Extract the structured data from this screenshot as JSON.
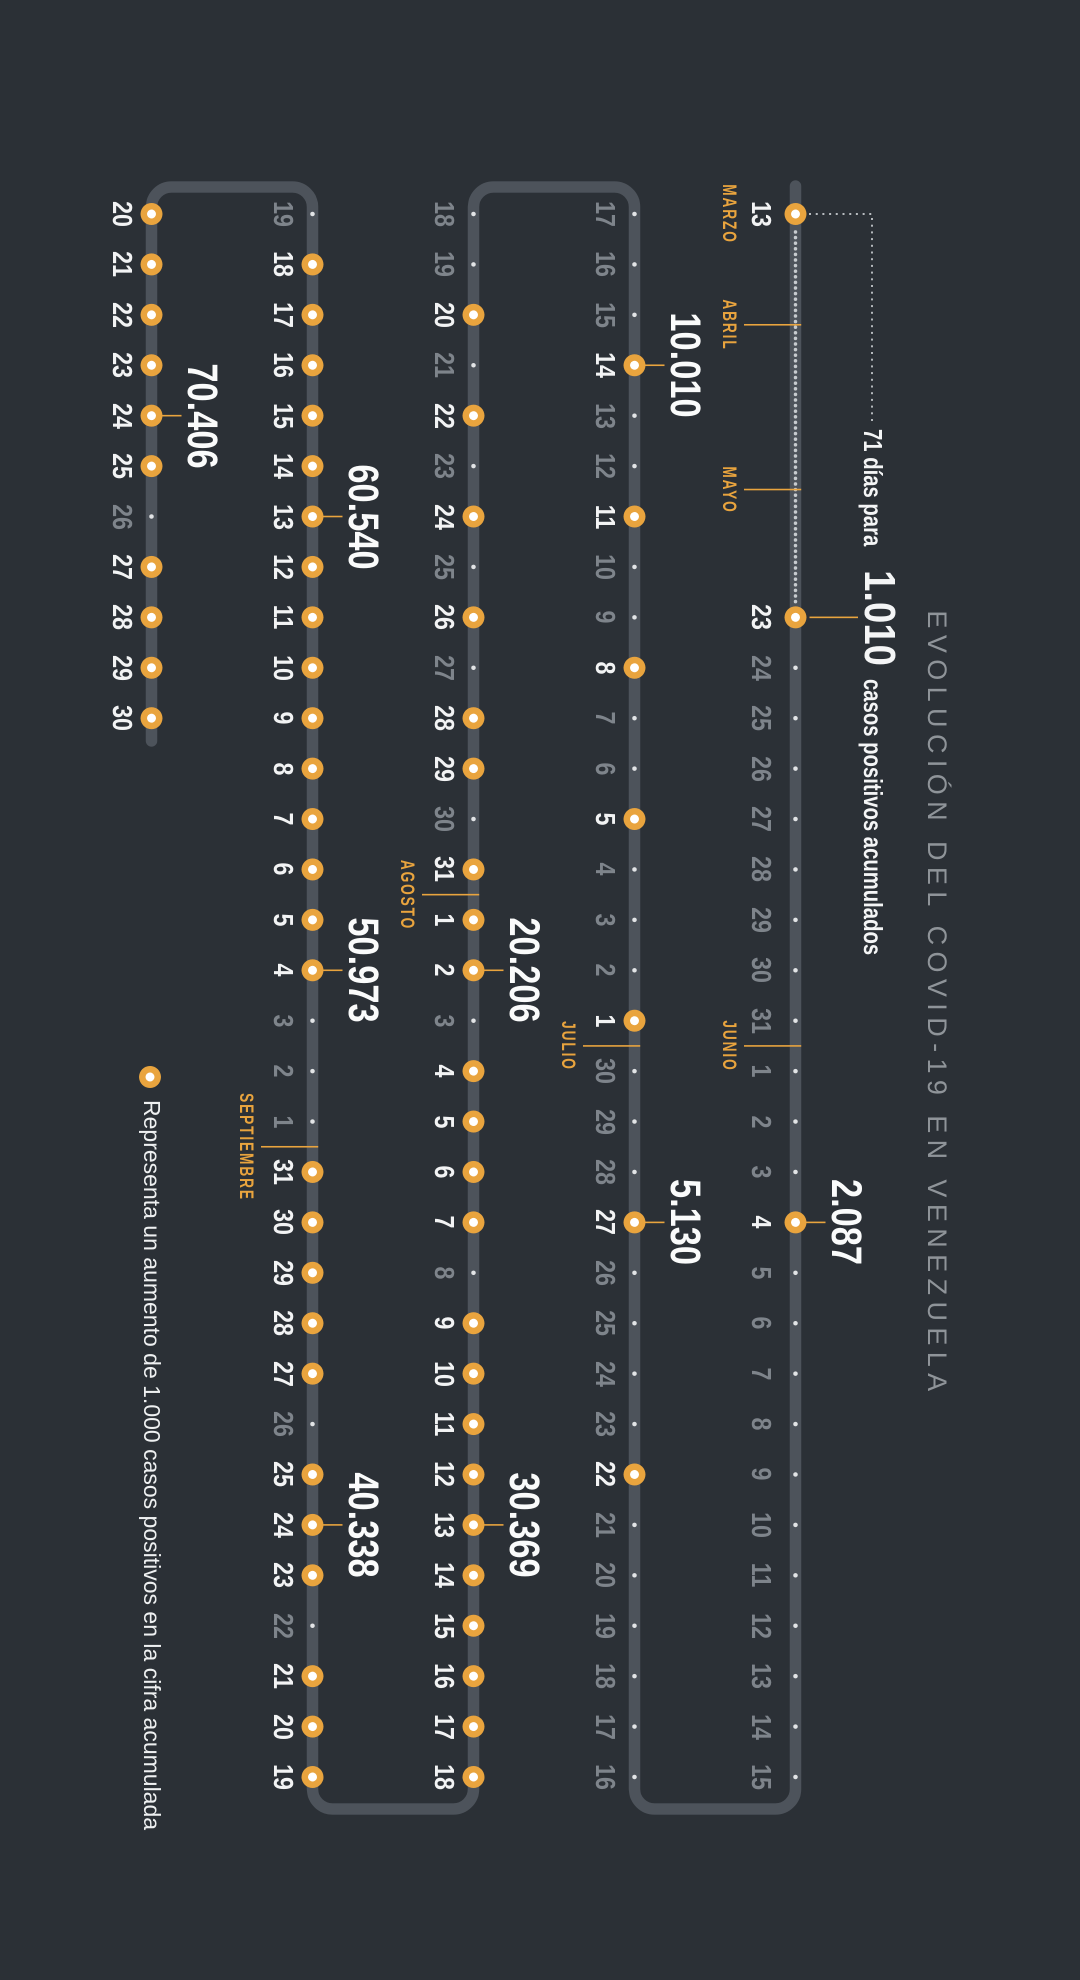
{
  "title": "EVOLUCIÓN DEL COVID-19 EN VENEZUELA",
  "annotation": {
    "prefix": "71 días para",
    "value": "1.010",
    "suffix": "casos positivos acumulados"
  },
  "legend": {
    "marker": "orange-ring-icon",
    "text": "Representa un aumento de 1.000 casos positivos en la cifra acumulada"
  },
  "colors": {
    "background": "#2b3036",
    "track": "#4d535b",
    "accent_orange": "#e9a43e",
    "label_grey": "#7e848b",
    "label_white": "#f2f3f4",
    "title_grey": "#8f9499",
    "trail_dot": "#c7cbcf",
    "day_dot": "#e2e4e6",
    "marker_center": "#ffffff"
  },
  "chart_data": {
    "type": "timeline",
    "title": "EVOLUCIÓN DEL COVID-19 EN VENEZUELA",
    "legend_entries": [
      "Representa un aumento de 1.000 casos positivos en la cifra acumulada"
    ],
    "annotations": [
      "71 días para 1.010 casos positivos acumulados"
    ],
    "milestone_meaning": "each orange ring marks an increase of 1.000 accumulated positive cases",
    "milestones": [
      {
        "value": "1.010",
        "month": "mayo",
        "day": 23
      },
      {
        "value": "2.087",
        "month": "junio",
        "day": 4
      },
      {
        "value": "5.130",
        "month": "junio",
        "day": 27
      },
      {
        "value": "10.010",
        "month": "julio",
        "day": 14
      },
      {
        "value": "20.206",
        "month": "agosto",
        "day": 2
      },
      {
        "value": "30.369",
        "month": "agosto",
        "day": 13
      },
      {
        "value": "40.338",
        "month": "agosto",
        "day": 24
      },
      {
        "value": "50.973",
        "month": "septiembre",
        "day": 4
      },
      {
        "value": "60.540",
        "month": "septiembre",
        "day": 13
      },
      {
        "value": "70.406",
        "month": "septiembre",
        "day": 24
      }
    ],
    "rows": [
      {
        "direction": "ltr",
        "start_label": {
          "month": "MARZO",
          "day": 13,
          "milestone": true
        },
        "dotted_gap": {
          "from": "14 marzo",
          "to": "22 mayo"
        },
        "ticks": [
          {
            "month": "ABRIL",
            "between_day_units": 19.5
          },
          {
            "month": "MAYO",
            "between_day_units": 48.5
          }
        ],
        "days": [
          {
            "m": "mayo",
            "d": 23,
            "ms": true,
            "big": "1.010_annotation"
          },
          {
            "m": "mayo",
            "d": 24
          },
          {
            "m": "mayo",
            "d": 25
          },
          {
            "m": "mayo",
            "d": 26
          },
          {
            "m": "mayo",
            "d": 27
          },
          {
            "m": "mayo",
            "d": 28
          },
          {
            "m": "mayo",
            "d": 29
          },
          {
            "m": "mayo",
            "d": 30
          },
          {
            "m": "mayo",
            "d": 31
          },
          {
            "m": "junio",
            "d": 1,
            "tick_before": "JUNIO"
          },
          {
            "m": "junio",
            "d": 2
          },
          {
            "m": "junio",
            "d": 3
          },
          {
            "m": "junio",
            "d": 4,
            "ms": true,
            "big": "2.087"
          },
          {
            "m": "junio",
            "d": 5
          },
          {
            "m": "junio",
            "d": 6
          },
          {
            "m": "junio",
            "d": 7
          },
          {
            "m": "junio",
            "d": 8
          },
          {
            "m": "junio",
            "d": 9
          },
          {
            "m": "junio",
            "d": 10
          },
          {
            "m": "junio",
            "d": 11
          },
          {
            "m": "junio",
            "d": 12
          },
          {
            "m": "junio",
            "d": 13
          },
          {
            "m": "junio",
            "d": 14
          },
          {
            "m": "junio",
            "d": 15
          }
        ]
      },
      {
        "direction": "rtl",
        "days": [
          {
            "m": "junio",
            "d": 16
          },
          {
            "m": "junio",
            "d": 17
          },
          {
            "m": "junio",
            "d": 18
          },
          {
            "m": "junio",
            "d": 19
          },
          {
            "m": "junio",
            "d": 20
          },
          {
            "m": "junio",
            "d": 21
          },
          {
            "m": "junio",
            "d": 22,
            "ms": true
          },
          {
            "m": "junio",
            "d": 23
          },
          {
            "m": "junio",
            "d": 24
          },
          {
            "m": "junio",
            "d": 25
          },
          {
            "m": "junio",
            "d": 26
          },
          {
            "m": "junio",
            "d": 27,
            "ms": true,
            "big": "5.130"
          },
          {
            "m": "junio",
            "d": 28
          },
          {
            "m": "junio",
            "d": 29
          },
          {
            "m": "junio",
            "d": 30
          },
          {
            "m": "julio",
            "d": 1,
            "ms": true,
            "tick_before": "JULIO"
          },
          {
            "m": "julio",
            "d": 2
          },
          {
            "m": "julio",
            "d": 3
          },
          {
            "m": "julio",
            "d": 4
          },
          {
            "m": "julio",
            "d": 5,
            "ms": true
          },
          {
            "m": "julio",
            "d": 6
          },
          {
            "m": "julio",
            "d": 7
          },
          {
            "m": "julio",
            "d": 8,
            "ms": true
          },
          {
            "m": "julio",
            "d": 9
          },
          {
            "m": "julio",
            "d": 10
          },
          {
            "m": "julio",
            "d": 11,
            "ms": true
          },
          {
            "m": "julio",
            "d": 12
          },
          {
            "m": "julio",
            "d": 13
          },
          {
            "m": "julio",
            "d": 14,
            "ms": true,
            "big": "10.010"
          },
          {
            "m": "julio",
            "d": 15
          },
          {
            "m": "julio",
            "d": 16
          },
          {
            "m": "julio",
            "d": 17
          }
        ]
      },
      {
        "direction": "ltr",
        "days": [
          {
            "m": "julio",
            "d": 18
          },
          {
            "m": "julio",
            "d": 19
          },
          {
            "m": "julio",
            "d": 20,
            "ms": true
          },
          {
            "m": "julio",
            "d": 21
          },
          {
            "m": "julio",
            "d": 22,
            "ms": true
          },
          {
            "m": "julio",
            "d": 23
          },
          {
            "m": "julio",
            "d": 24,
            "ms": true
          },
          {
            "m": "julio",
            "d": 25
          },
          {
            "m": "julio",
            "d": 26,
            "ms": true
          },
          {
            "m": "julio",
            "d": 27
          },
          {
            "m": "julio",
            "d": 28,
            "ms": true
          },
          {
            "m": "julio",
            "d": 29,
            "ms": true
          },
          {
            "m": "julio",
            "d": 30
          },
          {
            "m": "julio",
            "d": 31,
            "ms": true
          },
          {
            "m": "agosto",
            "d": 1,
            "ms": true,
            "tick_before": "AGOSTO"
          },
          {
            "m": "agosto",
            "d": 2,
            "ms": true,
            "big": "20.206"
          },
          {
            "m": "agosto",
            "d": 3
          },
          {
            "m": "agosto",
            "d": 4,
            "ms": true
          },
          {
            "m": "agosto",
            "d": 5,
            "ms": true
          },
          {
            "m": "agosto",
            "d": 6,
            "ms": true
          },
          {
            "m": "agosto",
            "d": 7,
            "ms": true
          },
          {
            "m": "agosto",
            "d": 8
          },
          {
            "m": "agosto",
            "d": 9,
            "ms": true
          },
          {
            "m": "agosto",
            "d": 10,
            "ms": true
          },
          {
            "m": "agosto",
            "d": 11,
            "ms": true
          },
          {
            "m": "agosto",
            "d": 12,
            "ms": true
          },
          {
            "m": "agosto",
            "d": 13,
            "ms": true,
            "big": "30.369"
          },
          {
            "m": "agosto",
            "d": 14,
            "ms": true
          },
          {
            "m": "agosto",
            "d": 15,
            "ms": true
          },
          {
            "m": "agosto",
            "d": 16,
            "ms": true
          },
          {
            "m": "agosto",
            "d": 17,
            "ms": true
          },
          {
            "m": "agosto",
            "d": 18,
            "ms": true
          }
        ]
      },
      {
        "direction": "rtl",
        "days": [
          {
            "m": "agosto",
            "d": 19,
            "ms": true
          },
          {
            "m": "agosto",
            "d": 20,
            "ms": true
          },
          {
            "m": "agosto",
            "d": 21,
            "ms": true
          },
          {
            "m": "agosto",
            "d": 22
          },
          {
            "m": "agosto",
            "d": 23,
            "ms": true
          },
          {
            "m": "agosto",
            "d": 24,
            "ms": true,
            "big": "40.338"
          },
          {
            "m": "agosto",
            "d": 25,
            "ms": true
          },
          {
            "m": "agosto",
            "d": 26
          },
          {
            "m": "agosto",
            "d": 27,
            "ms": true
          },
          {
            "m": "agosto",
            "d": 28,
            "ms": true
          },
          {
            "m": "agosto",
            "d": 29,
            "ms": true
          },
          {
            "m": "agosto",
            "d": 30,
            "ms": true
          },
          {
            "m": "agosto",
            "d": 31,
            "ms": true
          },
          {
            "m": "septiembre",
            "d": 1,
            "tick_before": "SEPTIEMBRE"
          },
          {
            "m": "septiembre",
            "d": 2
          },
          {
            "m": "septiembre",
            "d": 3
          },
          {
            "m": "septiembre",
            "d": 4,
            "ms": true,
            "big": "50.973"
          },
          {
            "m": "septiembre",
            "d": 5,
            "ms": true
          },
          {
            "m": "septiembre",
            "d": 6,
            "ms": true
          },
          {
            "m": "septiembre",
            "d": 7,
            "ms": true
          },
          {
            "m": "septiembre",
            "d": 8,
            "ms": true
          },
          {
            "m": "septiembre",
            "d": 9,
            "ms": true
          },
          {
            "m": "septiembre",
            "d": 10,
            "ms": true
          },
          {
            "m": "septiembre",
            "d": 11,
            "ms": true
          },
          {
            "m": "septiembre",
            "d": 12,
            "ms": true
          },
          {
            "m": "septiembre",
            "d": 13,
            "ms": true,
            "big": "60.540"
          },
          {
            "m": "septiembre",
            "d": 14,
            "ms": true
          },
          {
            "m": "septiembre",
            "d": 15,
            "ms": true
          },
          {
            "m": "septiembre",
            "d": 16,
            "ms": true
          },
          {
            "m": "septiembre",
            "d": 17,
            "ms": true
          },
          {
            "m": "septiembre",
            "d": 18,
            "ms": true
          },
          {
            "m": "septiembre",
            "d": 19
          }
        ]
      },
      {
        "direction": "ltr",
        "days": [
          {
            "m": "septiembre",
            "d": 20,
            "ms": true
          },
          {
            "m": "septiembre",
            "d": 21,
            "ms": true
          },
          {
            "m": "septiembre",
            "d": 22,
            "ms": true
          },
          {
            "m": "septiembre",
            "d": 23,
            "ms": true
          },
          {
            "m": "septiembre",
            "d": 24,
            "ms": true,
            "big": "70.406"
          },
          {
            "m": "septiembre",
            "d": 25,
            "ms": true
          },
          {
            "m": "septiembre",
            "d": 26
          },
          {
            "m": "septiembre",
            "d": 27,
            "ms": true
          },
          {
            "m": "septiembre",
            "d": 28,
            "ms": true
          },
          {
            "m": "septiembre",
            "d": 29,
            "ms": true
          },
          {
            "m": "septiembre",
            "d": 30,
            "ms": true
          }
        ]
      }
    ]
  }
}
